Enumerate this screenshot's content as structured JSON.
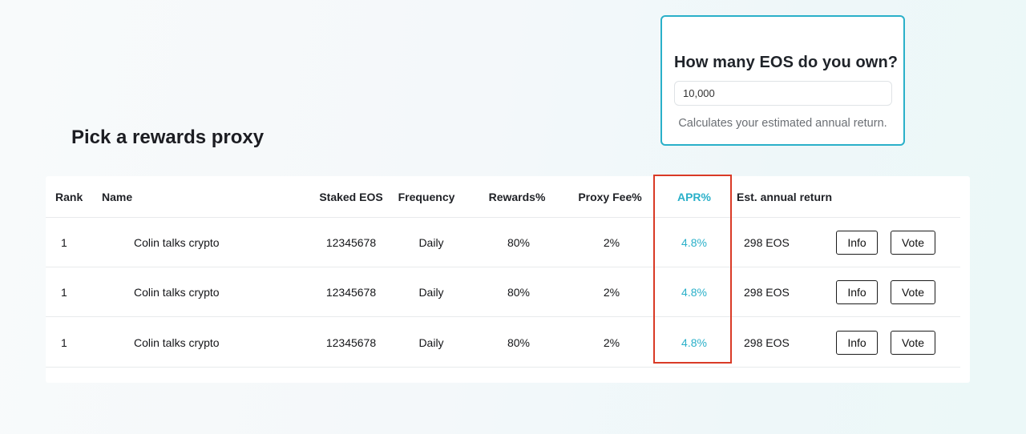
{
  "calculator": {
    "title": "How many EOS do you own?",
    "input_value": "10,000",
    "hint": "Calculates your estimated annual return."
  },
  "section": {
    "title": "Pick a rewards proxy"
  },
  "table": {
    "headers": {
      "rank": "Rank",
      "name": "Name",
      "staked": "Staked EOS",
      "frequency": "Frequency",
      "rewards": "Rewards%",
      "fee": "Proxy Fee%",
      "apr": "APR%",
      "annual": "Est. annual return"
    },
    "rows": [
      {
        "rank": "1",
        "name": "Colin talks crypto",
        "staked": "12345678",
        "frequency": "Daily",
        "rewards": "80%",
        "fee": "2%",
        "apr": "4.8%",
        "annual": "298 EOS",
        "info_label": "Info",
        "vote_label": "Vote"
      },
      {
        "rank": "1",
        "name": "Colin talks crypto",
        "staked": "12345678",
        "frequency": "Daily",
        "rewards": "80%",
        "fee": "2%",
        "apr": "4.8%",
        "annual": "298 EOS",
        "info_label": "Info",
        "vote_label": "Vote"
      },
      {
        "rank": "1",
        "name": "Colin talks crypto",
        "staked": "12345678",
        "frequency": "Daily",
        "rewards": "80%",
        "fee": "2%",
        "apr": "4.8%",
        "annual": "298 EOS",
        "info_label": "Info",
        "vote_label": "Vote"
      }
    ]
  },
  "colors": {
    "accent": "#2ab0c9",
    "highlight": "#d93a26"
  }
}
